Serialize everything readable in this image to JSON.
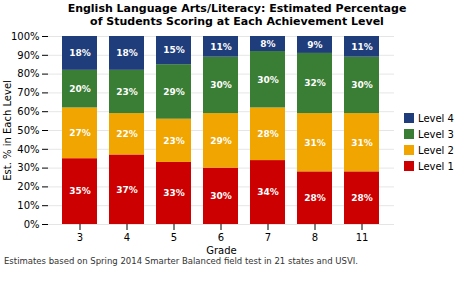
{
  "chart_data": {
    "type": "bar",
    "title": "English Language Arts/Literacy:  Estimated Percentage\nof Students Scoring at Each Achievement Level",
    "xlabel": "Grade",
    "ylabel": "Est. % in Each Level",
    "footnote": "Estimates based on Spring 2014 Smarter Balanced field test in 21 states and USVI.",
    "categories": [
      "3",
      "4",
      "5",
      "6",
      "7",
      "8",
      "11"
    ],
    "stacked": true,
    "data_labels": true,
    "grid": true,
    "legend": "right",
    "series": [
      {
        "name": "Level 1",
        "color": "#cc0000",
        "values": [
          35,
          37,
          33,
          30,
          34,
          28,
          28
        ],
        "value_labels": [
          "35%",
          "37%",
          "33%",
          "30%",
          "34%",
          "28%",
          "28%"
        ]
      },
      {
        "name": "Level 2",
        "color": "#f0a500",
        "values": [
          27,
          22,
          23,
          29,
          28,
          31,
          31
        ],
        "value_labels": [
          "27%",
          "22%",
          "23%",
          "29%",
          "28%",
          "31%",
          "31%"
        ]
      },
      {
        "name": "Level 3",
        "color": "#3a7d34",
        "values": [
          20,
          23,
          29,
          30,
          30,
          32,
          30
        ],
        "value_labels": [
          "20%",
          "23%",
          "29%",
          "30%",
          "30%",
          "32%",
          "30%"
        ]
      },
      {
        "name": "Level 4",
        "color": "#1f3d7a",
        "values": [
          18,
          18,
          15,
          11,
          8,
          9,
          11
        ],
        "value_labels": [
          "18%",
          "18%",
          "15%",
          "11%",
          "8%",
          "9%",
          "11%"
        ]
      }
    ],
    "ylim": [
      0,
      100
    ],
    "yticks": [
      {
        "value": 0,
        "label": "0%"
      },
      {
        "value": 10,
        "label": "10%"
      },
      {
        "value": 20,
        "label": "20%"
      },
      {
        "value": 30,
        "label": "30%"
      },
      {
        "value": 40,
        "label": "40%"
      },
      {
        "value": 50,
        "label": "50%"
      },
      {
        "value": 60,
        "label": "60%"
      },
      {
        "value": 70,
        "label": "70%"
      },
      {
        "value": 80,
        "label": "80%"
      },
      {
        "value": 90,
        "label": "90%"
      },
      {
        "value": 100,
        "label": "100%"
      }
    ]
  }
}
